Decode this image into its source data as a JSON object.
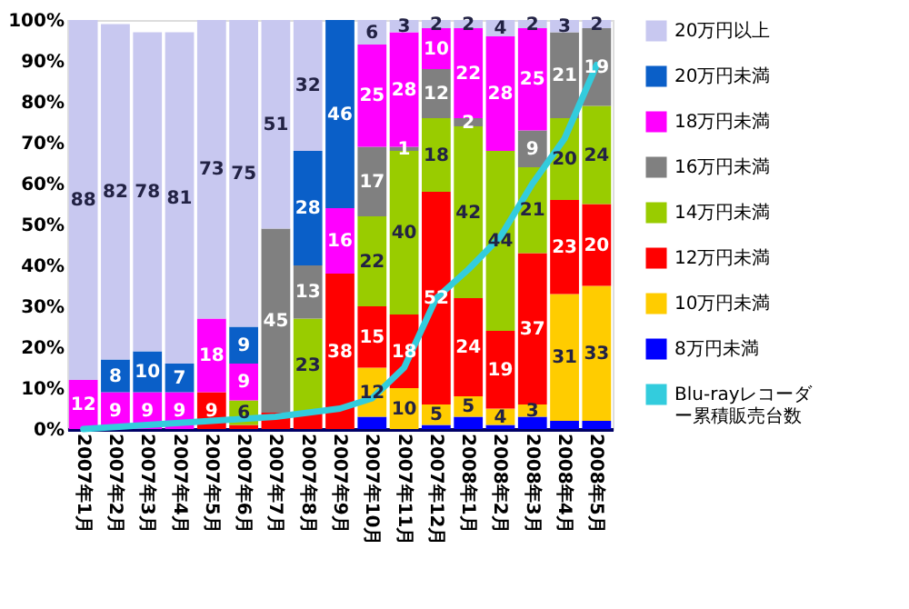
{
  "chart_data": {
    "type": "bar",
    "stacked": true,
    "categories": [
      "2007年1月",
      "2007年2月",
      "2007年3月",
      "2007年4月",
      "2007年5月",
      "2007年6月",
      "2007年7月",
      "2007年8月",
      "2007年9月",
      "2007年10月",
      "2007年11月",
      "2007年12月",
      "2008年1月",
      "2008年2月",
      "2008年3月",
      "2008年4月",
      "2008年5月"
    ],
    "series": [
      {
        "name": "8万円未満",
        "color": "#0000ff",
        "values": [
          null,
          null,
          null,
          null,
          null,
          null,
          null,
          null,
          null,
          3,
          null,
          1,
          3,
          1,
          3,
          2,
          2
        ],
        "value_labels": [
          null,
          null,
          null,
          null,
          null,
          null,
          null,
          null,
          null,
          null,
          null,
          null,
          null,
          null,
          null,
          null,
          null
        ]
      },
      {
        "name": "10万円未満",
        "color": "#ffcc00",
        "values": [
          null,
          null,
          null,
          null,
          null,
          null,
          null,
          null,
          null,
          12,
          10,
          5,
          5,
          4,
          3,
          31,
          33
        ],
        "value_labels": [
          null,
          null,
          null,
          null,
          null,
          null,
          null,
          null,
          null,
          "12",
          "10",
          "5",
          "5",
          "4",
          "3",
          "31",
          "33"
        ]
      },
      {
        "name": "12万円未満",
        "color": "#ff0000",
        "values": [
          null,
          null,
          null,
          null,
          9,
          1,
          4,
          4,
          38,
          15,
          18,
          52,
          24,
          19,
          37,
          23,
          20
        ],
        "value_labels": [
          null,
          null,
          null,
          null,
          "9",
          null,
          null,
          null,
          "38",
          "15",
          "18",
          "52",
          "24",
          "19",
          "37",
          "23",
          "20"
        ]
      },
      {
        "name": "14万円未満",
        "color": "#99cc00",
        "values": [
          null,
          null,
          null,
          null,
          null,
          6,
          null,
          23,
          null,
          22,
          40,
          18,
          42,
          44,
          21,
          20,
          24
        ],
        "value_labels": [
          null,
          null,
          null,
          null,
          null,
          "6",
          null,
          "23",
          null,
          "22",
          "40",
          "18",
          "42",
          "44",
          "21",
          "20",
          "24"
        ]
      },
      {
        "name": "16万円未満",
        "color": "#808080",
        "values": [
          null,
          null,
          null,
          null,
          null,
          null,
          45,
          13,
          null,
          17,
          1,
          12,
          2,
          null,
          9,
          21,
          19
        ],
        "value_labels": [
          null,
          null,
          null,
          null,
          null,
          null,
          "45",
          "13",
          null,
          "17",
          "1",
          "12",
          "2",
          null,
          "9",
          "21",
          "19"
        ]
      },
      {
        "name": "18万円未満",
        "color": "#ff00ff",
        "values": [
          12,
          9,
          9,
          9,
          18,
          9,
          null,
          null,
          16,
          25,
          28,
          10,
          22,
          28,
          25,
          null,
          null
        ],
        "value_labels": [
          "12",
          "9",
          "9",
          "9",
          "18",
          "9",
          null,
          null,
          "16",
          "25",
          "28",
          "10",
          "22",
          "28",
          "25",
          null,
          null
        ]
      },
      {
        "name": "20万円未満",
        "color": "#0a5fc8",
        "values": [
          null,
          8,
          10,
          7,
          null,
          9,
          null,
          28,
          46,
          null,
          null,
          null,
          null,
          null,
          null,
          null,
          null
        ],
        "value_labels": [
          null,
          "8",
          "10",
          "7",
          null,
          "9",
          null,
          "28",
          "46",
          null,
          null,
          null,
          null,
          null,
          null,
          null,
          null
        ]
      },
      {
        "name": "20万円以上",
        "color": "#c8c8f0",
        "values": [
          88,
          82,
          78,
          81,
          73,
          75,
          51,
          32,
          null,
          6,
          3,
          2,
          2,
          4,
          2,
          3,
          2
        ],
        "value_labels": [
          "88",
          "82",
          "78",
          "81",
          "73",
          "75",
          "51",
          "32",
          null,
          "6",
          "3",
          "2",
          "2",
          "4",
          "2",
          "3",
          "2"
        ]
      },
      {
        "name": "Blu-rayレコーダー累積販売台数",
        "type": "line",
        "color": "#33ccdd",
        "values": [
          0,
          0.5,
          1,
          1.5,
          2,
          2.5,
          3,
          4,
          5,
          7.5,
          15,
          32,
          39,
          47,
          60,
          71,
          89
        ]
      }
    ],
    "ylim": [
      0,
      100
    ],
    "yticks": [
      {
        "value": 0,
        "label": "0%"
      },
      {
        "value": 10,
        "label": "10%"
      },
      {
        "value": 20,
        "label": "20%"
      },
      {
        "value": 30,
        "label": "30%"
      },
      {
        "value": 40,
        "label": "40%"
      },
      {
        "value": 50,
        "label": "50%"
      },
      {
        "value": 60,
        "label": "60%"
      },
      {
        "value": 70,
        "label": "70%"
      },
      {
        "value": 80,
        "label": "80%"
      },
      {
        "value": 90,
        "label": "90%"
      },
      {
        "value": 100,
        "label": "100%"
      }
    ],
    "grid": false,
    "legend": "right"
  }
}
